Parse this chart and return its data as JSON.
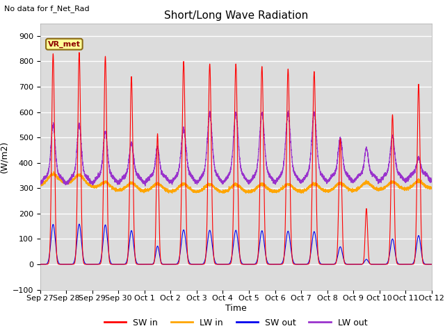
{
  "title": "Short/Long Wave Radiation",
  "subtitle": "No data for f_Net_Rad",
  "ylabel": "(W/m2)",
  "xlabel": "Time",
  "ylim": [
    -100,
    950
  ],
  "yticks": [
    -100,
    0,
    100,
    200,
    300,
    400,
    500,
    600,
    700,
    800,
    900
  ],
  "bg_color": "#dcdcdc",
  "fig_color": "#ffffff",
  "grid_color": "#ffffff",
  "legend_items": [
    "SW in",
    "LW in",
    "SW out",
    "LW out"
  ],
  "legend_colors": [
    "#ff0000",
    "#ffa500",
    "#0000ee",
    "#9932cc"
  ],
  "station_label": "VR_met",
  "station_box_facecolor": "#ffff99",
  "station_box_edgecolor": "#8b6914",
  "station_label_color": "#8b0000",
  "sw_in_peaks": [
    830,
    835,
    820,
    740,
    515,
    800,
    790,
    790,
    780,
    770,
    760,
    495,
    220,
    590,
    710
  ],
  "sw_in_widths": [
    0.055,
    0.055,
    0.055,
    0.055,
    0.045,
    0.06,
    0.06,
    0.06,
    0.06,
    0.06,
    0.06,
    0.055,
    0.045,
    0.055,
    0.055
  ],
  "sw_out_ratios": [
    0.19,
    0.19,
    0.19,
    0.18,
    0.14,
    0.17,
    0.17,
    0.17,
    0.17,
    0.17,
    0.17,
    0.14,
    0.09,
    0.17,
    0.16
  ],
  "lw_out_peaks": [
    550,
    550,
    520,
    475,
    460,
    530,
    590,
    590,
    590,
    590,
    590,
    490,
    450,
    500,
    410
  ],
  "lw_out_widths": [
    0.08,
    0.08,
    0.08,
    0.08,
    0.07,
    0.09,
    0.09,
    0.09,
    0.09,
    0.09,
    0.09,
    0.08,
    0.07,
    0.08,
    0.075
  ],
  "tick_labels": [
    "Sep 27",
    "Sep 28",
    "Sep 29",
    "Sep 30",
    "Oct 1",
    "Oct 2",
    "Oct 3",
    "Oct 4",
    "Oct 5",
    "Oct 6",
    "Oct 7",
    "Oct 8",
    "Oct 9",
    "Oct 10",
    "Oct 11",
    "Oct 12"
  ],
  "n_points": 6000,
  "figsize": [
    6.4,
    4.8
  ],
  "dpi": 100
}
